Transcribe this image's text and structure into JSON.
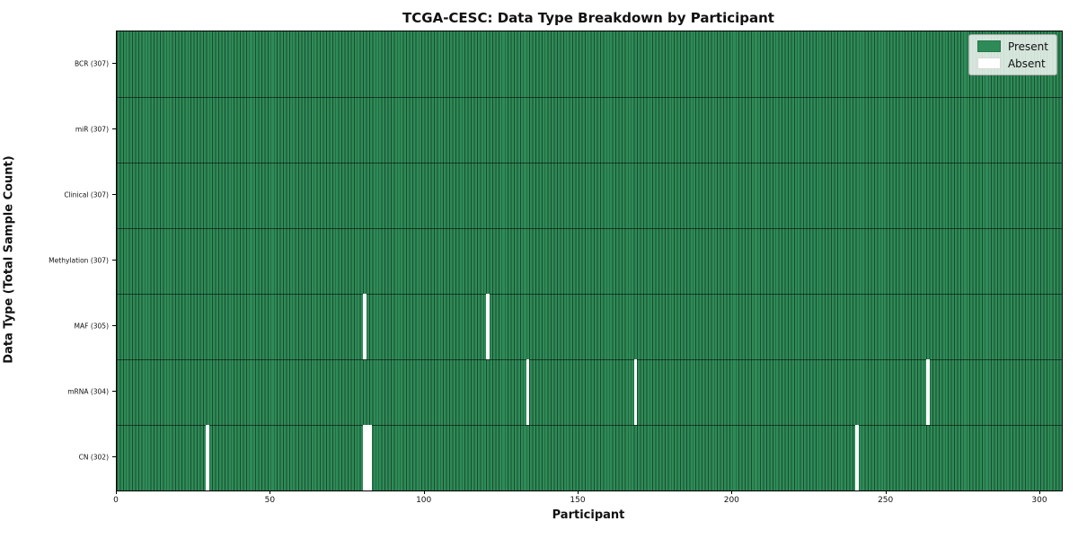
{
  "chart_data": {
    "type": "heatmap",
    "title": "TCGA-CESC: Data Type Breakdown by Participant",
    "xlabel": "Participant",
    "ylabel": "Data Type (Total Sample Count)",
    "n_participants": 307,
    "x_ticks": [
      0,
      50,
      100,
      150,
      200,
      250,
      300
    ],
    "rows": [
      {
        "name": "BCR",
        "label": "BCR (307)",
        "total_samples": 307,
        "absent_participants": []
      },
      {
        "name": "miR",
        "label": "miR (307)",
        "total_samples": 307,
        "absent_participants": []
      },
      {
        "name": "Clinical",
        "label": "Clinical (307)",
        "total_samples": 307,
        "absent_participants": []
      },
      {
        "name": "Methylation",
        "label": "Methylation (307)",
        "total_samples": 307,
        "absent_participants": []
      },
      {
        "name": "MAF",
        "label": "MAF (305)",
        "total_samples": 305,
        "absent_participants": [
          80,
          120
        ]
      },
      {
        "name": "mRNA",
        "label": "mRNA (304)",
        "total_samples": 304,
        "absent_participants": [
          133,
          168,
          263
        ]
      },
      {
        "name": "CN",
        "label": "CN (302)",
        "total_samples": 302,
        "absent_participants": [
          29,
          80,
          81,
          82,
          240
        ]
      }
    ],
    "legend": [
      {
        "label": "Present",
        "color": "#2e8b57"
      },
      {
        "label": "Absent",
        "color": "#ffffff"
      }
    ],
    "colors": {
      "present": "#2e8b57",
      "absent": "#ffffff",
      "cell_edge": "rgba(0,0,0,0.45)",
      "row_separator": "rgba(0,0,0,0.55)"
    },
    "legend_position": "upper right",
    "grid": false
  }
}
